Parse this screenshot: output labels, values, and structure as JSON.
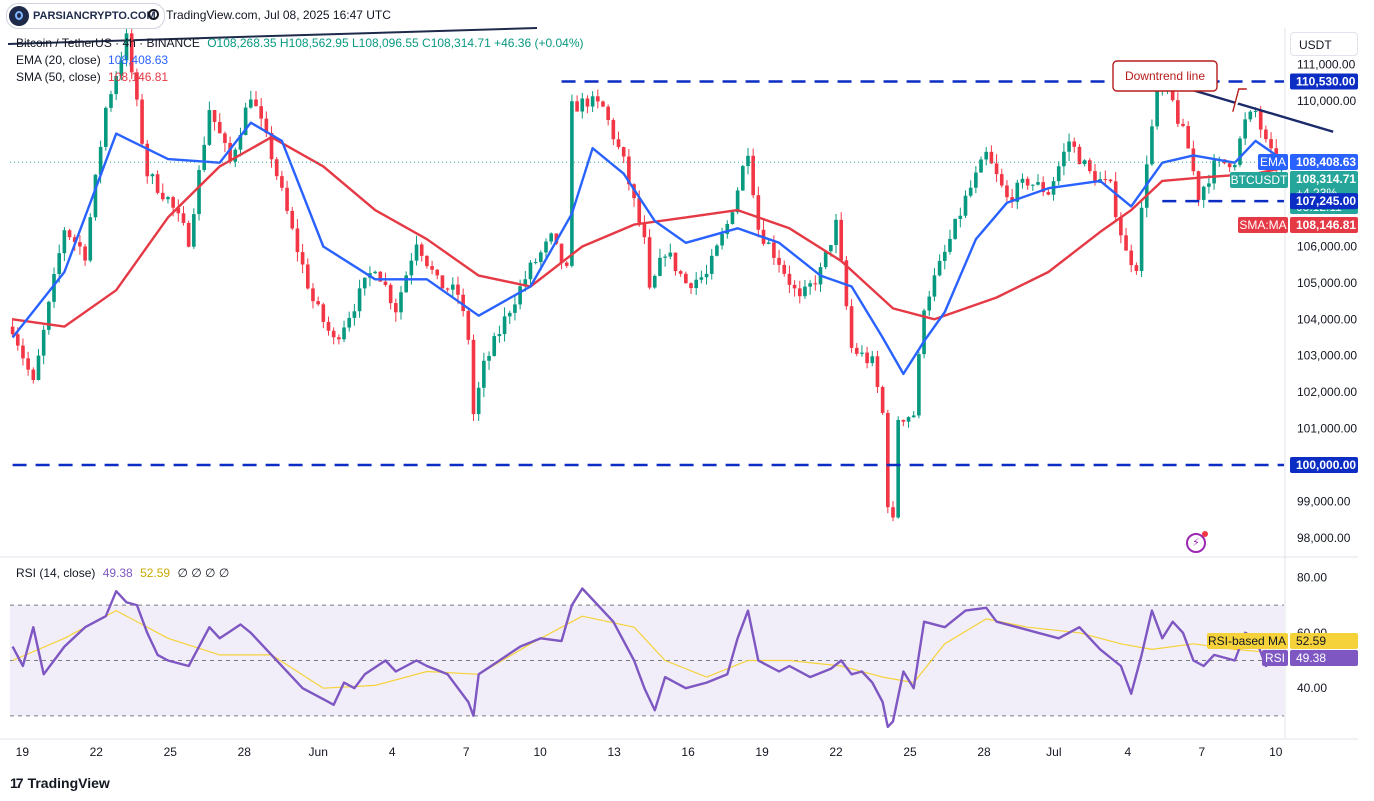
{
  "header": {
    "logo_text": "PARSIANCRYPTO.COM",
    "meta": "TradingView.com, Jul 08, 2025 16:47 UTC",
    "symbol": "Bitcoin / TetherUS · 4h · BINANCE",
    "ohlc": "O108,268.35 H108,562.95 L108,096.55 C108,314.71 +46.36 (+0.04%)",
    "ema_label": "EMA (20, close)",
    "ema_value": "108,408.63",
    "sma_label": "SMA (50, close)",
    "sma_value": "108,146.81",
    "rsi_label": "RSI (14, close)",
    "rsi_value": "49.38",
    "rsi_ma_value": "52.59",
    "rsi_extra": "∅ ∅ ∅ ∅"
  },
  "currency": "USDT",
  "footer": {
    "brand": "TradingView"
  },
  "colors": {
    "up": "#089981",
    "down": "#f23645",
    "ema": "#2962ff",
    "sma": "#e53945",
    "rsi": "#7e57c2",
    "rsi_ma": "#f5d23a",
    "level": "#0c2dc4",
    "trend": "#1b2a6b",
    "annotation": "#b71c1c",
    "last_price": "#26a69a"
  },
  "chart_data": [
    {
      "type": "candlestick",
      "title": "Bitcoin / TetherUS · 4h · BINANCE",
      "ylim": [
        97500,
        112000
      ],
      "x_ticks": [
        "19",
        "22",
        "25",
        "28",
        "Jun",
        "4",
        "7",
        "10",
        "13",
        "16",
        "19",
        "22",
        "25",
        "28",
        "Jul",
        "4",
        "7",
        "10"
      ],
      "y_ticks": [
        "98,000.00",
        "99,000.00",
        "101,000.00",
        "102,000.00",
        "103,000.00",
        "104,000.00",
        "105,000.00",
        "106,000.00",
        "110,000.00",
        "111,000.00"
      ],
      "anchors": [
        [
          0,
          103800
        ],
        [
          4,
          102200
        ],
        [
          10,
          106500
        ],
        [
          14,
          105800
        ],
        [
          18,
          109800
        ],
        [
          22,
          111700
        ],
        [
          26,
          108000
        ],
        [
          30,
          107300
        ],
        [
          34,
          106200
        ],
        [
          38,
          109800
        ],
        [
          42,
          108300
        ],
        [
          46,
          110200
        ],
        [
          50,
          108500
        ],
        [
          54,
          106400
        ],
        [
          58,
          104500
        ],
        [
          62,
          103400
        ],
        [
          66,
          104400
        ],
        [
          70,
          105500
        ],
        [
          74,
          104300
        ],
        [
          78,
          106200
        ],
        [
          82,
          105000
        ],
        [
          86,
          104700
        ],
        [
          88,
          103500
        ],
        [
          89,
          101400
        ],
        [
          91,
          102700
        ],
        [
          96,
          104300
        ],
        [
          100,
          105400
        ],
        [
          104,
          106200
        ],
        [
          107,
          105300
        ],
        [
          108,
          109800
        ],
        [
          111,
          110000
        ],
        [
          114,
          109800
        ],
        [
          118,
          108300
        ],
        [
          122,
          106100
        ],
        [
          123,
          104700
        ],
        [
          126,
          105900
        ],
        [
          130,
          105000
        ],
        [
          134,
          105200
        ],
        [
          138,
          106600
        ],
        [
          140,
          107600
        ],
        [
          142,
          108700
        ],
        [
          144,
          106500
        ],
        [
          148,
          105600
        ],
        [
          152,
          104500
        ],
        [
          156,
          105300
        ],
        [
          159,
          106600
        ],
        [
          162,
          103200
        ],
        [
          166,
          102800
        ],
        [
          168,
          101400
        ],
        [
          169,
          99000
        ],
        [
          170,
          98400
        ],
        [
          171,
          101300
        ],
        [
          174,
          101400
        ],
        [
          176,
          104400
        ],
        [
          180,
          105800
        ],
        [
          184,
          107300
        ],
        [
          188,
          108500
        ],
        [
          192,
          107300
        ],
        [
          196,
          107800
        ],
        [
          200,
          107500
        ],
        [
          204,
          108900
        ],
        [
          208,
          108000
        ],
        [
          212,
          107600
        ],
        [
          215,
          105800
        ],
        [
          217,
          105500
        ],
        [
          219,
          108400
        ],
        [
          221,
          110100
        ],
        [
          223,
          110400
        ],
        [
          225,
          109500
        ],
        [
          227,
          108700
        ],
        [
          229,
          107400
        ],
        [
          232,
          108200
        ],
        [
          236,
          108400
        ],
        [
          238,
          109400
        ],
        [
          240,
          109700
        ],
        [
          242,
          108800
        ],
        [
          244,
          108200
        ],
        [
          245,
          108314.71
        ]
      ],
      "ema_20": [
        [
          0,
          103500
        ],
        [
          10,
          105300
        ],
        [
          20,
          109100
        ],
        [
          30,
          108400
        ],
        [
          40,
          108300
        ],
        [
          46,
          109400
        ],
        [
          52,
          108900
        ],
        [
          60,
          106000
        ],
        [
          70,
          105100
        ],
        [
          80,
          105100
        ],
        [
          90,
          104100
        ],
        [
          100,
          104900
        ],
        [
          108,
          106900
        ],
        [
          112,
          108700
        ],
        [
          118,
          108000
        ],
        [
          124,
          106700
        ],
        [
          130,
          106100
        ],
        [
          140,
          106500
        ],
        [
          148,
          106100
        ],
        [
          156,
          105200
        ],
        [
          162,
          104900
        ],
        [
          168,
          103500
        ],
        [
          172,
          102500
        ],
        [
          176,
          103400
        ],
        [
          180,
          104200
        ],
        [
          186,
          106200
        ],
        [
          192,
          107200
        ],
        [
          200,
          107600
        ],
        [
          210,
          107800
        ],
        [
          216,
          107100
        ],
        [
          222,
          108300
        ],
        [
          228,
          108500
        ],
        [
          236,
          108300
        ],
        [
          240,
          108900
        ],
        [
          245,
          108408.63
        ]
      ],
      "sma_50": [
        [
          0,
          104000
        ],
        [
          10,
          103800
        ],
        [
          20,
          104800
        ],
        [
          30,
          106800
        ],
        [
          40,
          108200
        ],
        [
          50,
          109000
        ],
        [
          60,
          108200
        ],
        [
          70,
          107000
        ],
        [
          80,
          106200
        ],
        [
          90,
          105200
        ],
        [
          100,
          104900
        ],
        [
          110,
          106000
        ],
        [
          120,
          106600
        ],
        [
          130,
          106800
        ],
        [
          140,
          107000
        ],
        [
          150,
          106500
        ],
        [
          160,
          105600
        ],
        [
          170,
          104300
        ],
        [
          178,
          104000
        ],
        [
          190,
          104600
        ],
        [
          200,
          105300
        ],
        [
          210,
          106400
        ],
        [
          216,
          107000
        ],
        [
          222,
          107800
        ],
        [
          230,
          107900
        ],
        [
          240,
          108000
        ],
        [
          245,
          108146.81
        ]
      ],
      "horizontal_levels": [
        {
          "value": 110530,
          "label": "110,530.00",
          "x_start": 106
        },
        {
          "value": 107245,
          "label": "107,245.00",
          "x_start": 222
        },
        {
          "value": 100000,
          "label": "100,000.00",
          "x_start": 0
        }
      ],
      "trendline": {
        "from": [
          223,
          110500
        ],
        "to": [
          255,
          109150
        ]
      },
      "annotation": {
        "text": "Downtrend line",
        "point": [
          236,
          109700
        ]
      },
      "price_labels": {
        "ema_tag": "EMA",
        "ema": "108,408.63",
        "symbol_tag": "BTCUSDT",
        "last": "108,314.71",
        "change": "+4.23%",
        "countdown": "03:12:11",
        "sma_tag": "SMA:MA",
        "sma": "108,146.81"
      }
    },
    {
      "type": "line",
      "title": "RSI (14, close)",
      "ylim": [
        22,
        87
      ],
      "y_ticks": [
        "80.00",
        "60.00",
        "40.00"
      ],
      "band": [
        70,
        30
      ],
      "midline": 50,
      "rsi": [
        [
          0,
          55
        ],
        [
          2,
          48
        ],
        [
          4,
          62
        ],
        [
          6,
          45
        ],
        [
          8,
          50
        ],
        [
          10,
          55
        ],
        [
          14,
          62
        ],
        [
          18,
          66
        ],
        [
          20,
          75
        ],
        [
          22,
          71
        ],
        [
          24,
          70
        ],
        [
          26,
          60
        ],
        [
          28,
          52
        ],
        [
          30,
          50
        ],
        [
          34,
          48
        ],
        [
          38,
          62
        ],
        [
          40,
          58
        ],
        [
          44,
          63
        ],
        [
          46,
          60
        ],
        [
          50,
          52
        ],
        [
          54,
          44
        ],
        [
          56,
          40
        ],
        [
          60,
          36
        ],
        [
          62,
          34
        ],
        [
          64,
          42
        ],
        [
          66,
          40
        ],
        [
          68,
          45
        ],
        [
          72,
          50
        ],
        [
          74,
          46
        ],
        [
          78,
          50
        ],
        [
          80,
          48
        ],
        [
          84,
          45
        ],
        [
          88,
          35
        ],
        [
          89,
          30
        ],
        [
          90,
          45
        ],
        [
          94,
          50
        ],
        [
          98,
          55
        ],
        [
          102,
          58
        ],
        [
          106,
          57
        ],
        [
          108,
          70
        ],
        [
          110,
          76
        ],
        [
          112,
          72
        ],
        [
          116,
          64
        ],
        [
          120,
          50
        ],
        [
          122,
          40
        ],
        [
          124,
          32
        ],
        [
          126,
          44
        ],
        [
          130,
          40
        ],
        [
          134,
          42
        ],
        [
          138,
          45
        ],
        [
          140,
          58
        ],
        [
          142,
          68
        ],
        [
          144,
          50
        ],
        [
          148,
          46
        ],
        [
          150,
          48
        ],
        [
          154,
          44
        ],
        [
          158,
          47
        ],
        [
          160,
          50
        ],
        [
          162,
          45
        ],
        [
          164,
          46
        ],
        [
          166,
          42
        ],
        [
          168,
          35
        ],
        [
          169,
          26
        ],
        [
          170,
          28
        ],
        [
          172,
          46
        ],
        [
          174,
          40
        ],
        [
          176,
          64
        ],
        [
          180,
          62
        ],
        [
          184,
          68
        ],
        [
          188,
          69
        ],
        [
          190,
          64
        ],
        [
          194,
          62
        ],
        [
          198,
          60
        ],
        [
          202,
          58
        ],
        [
          206,
          62
        ],
        [
          210,
          54
        ],
        [
          214,
          48
        ],
        [
          216,
          38
        ],
        [
          218,
          52
        ],
        [
          220,
          68
        ],
        [
          222,
          58
        ],
        [
          224,
          64
        ],
        [
          226,
          60
        ],
        [
          228,
          50
        ],
        [
          230,
          48
        ],
        [
          232,
          52
        ],
        [
          236,
          50
        ],
        [
          238,
          60
        ],
        [
          240,
          58
        ],
        [
          242,
          48
        ],
        [
          244,
          52
        ],
        [
          245,
          49.38
        ]
      ],
      "rsi_ma": [
        [
          0,
          50
        ],
        [
          10,
          58
        ],
        [
          20,
          68
        ],
        [
          30,
          58
        ],
        [
          40,
          52
        ],
        [
          50,
          52
        ],
        [
          60,
          40
        ],
        [
          70,
          41
        ],
        [
          80,
          46
        ],
        [
          90,
          45
        ],
        [
          100,
          56
        ],
        [
          110,
          66
        ],
        [
          120,
          62
        ],
        [
          126,
          50
        ],
        [
          134,
          44
        ],
        [
          142,
          50
        ],
        [
          150,
          50
        ],
        [
          160,
          48
        ],
        [
          168,
          44
        ],
        [
          174,
          42
        ],
        [
          180,
          56
        ],
        [
          188,
          65
        ],
        [
          196,
          62
        ],
        [
          206,
          60
        ],
        [
          214,
          56
        ],
        [
          220,
          54
        ],
        [
          228,
          56
        ],
        [
          236,
          54
        ],
        [
          245,
          52.59
        ]
      ],
      "labels": {
        "ma_tag": "RSI-based MA",
        "ma": "52.59",
        "rsi_tag": "RSI",
        "rsi": "49.38"
      }
    }
  ]
}
